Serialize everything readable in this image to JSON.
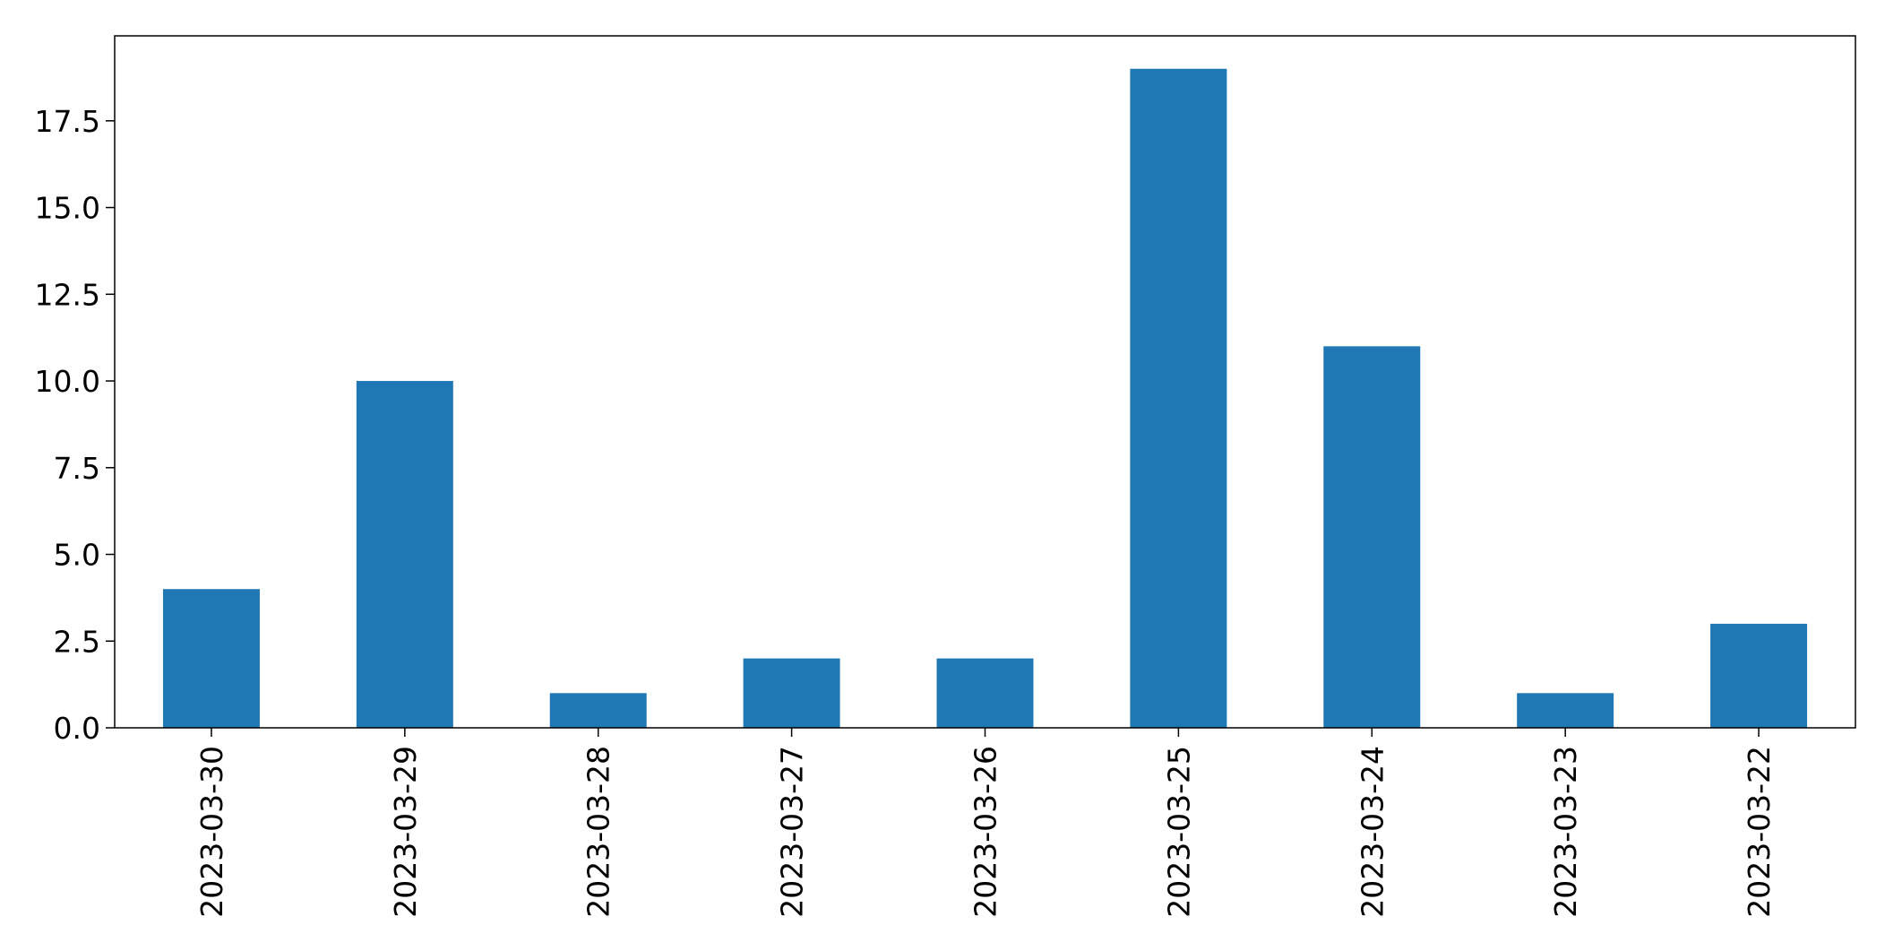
{
  "chart_data": {
    "type": "bar",
    "title": "",
    "xlabel": "",
    "ylabel": "",
    "categories": [
      "2023-03-30",
      "2023-03-29",
      "2023-03-28",
      "2023-03-27",
      "2023-03-26",
      "2023-03-25",
      "2023-03-24",
      "2023-03-23",
      "2023-03-22"
    ],
    "values": [
      4,
      10,
      1,
      2,
      2,
      19,
      11,
      1,
      3
    ],
    "ylim": [
      0,
      19.95
    ],
    "yticks": [
      "0.0",
      "2.5",
      "5.0",
      "7.5",
      "10.0",
      "12.5",
      "15.0",
      "17.5"
    ],
    "bar_color": "#1f77b4",
    "grid": false,
    "legend": "none"
  }
}
